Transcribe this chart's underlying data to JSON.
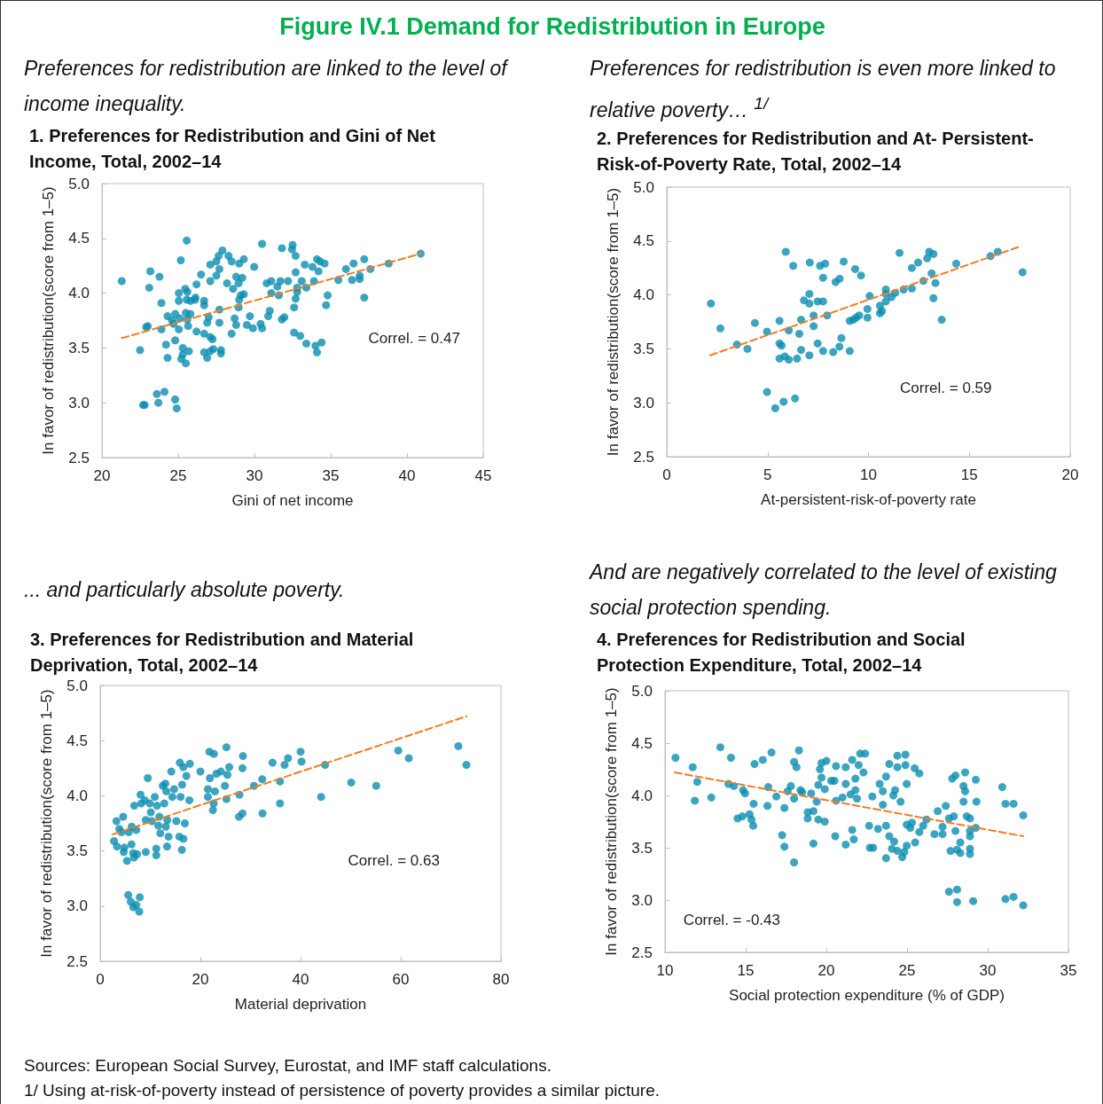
{
  "chart_data": [
    {
      "type": "other",
      "title": "Figure IV.1 Demand for Redistribution in Europe"
    },
    {
      "type": "scatter",
      "subtitle": "Preferences for redistribution are linked to the level of income inequality.",
      "title": "1. Preferences for Redistribution and Gini of Net Income, Total, 2002–14",
      "xlabel": "Gini of net income",
      "ylabel": "In favor of redistribution(score from 1–5)",
      "xlim": [
        20,
        45
      ],
      "xticks": [
        20,
        25,
        30,
        35,
        40,
        45
      ],
      "ylim": [
        2.5,
        5
      ],
      "yticks": [
        2.5,
        {
          "value": 3,
          "label": "3.0"
        },
        3.5,
        {
          "value": 4,
          "label": "4.0"
        },
        4.5,
        {
          "value": 5,
          "label": "5.0"
        }
      ],
      "marker": "circle",
      "annotations": [
        "Correl. = 0.47"
      ],
      "series": [
        {
          "type": "scatter",
          "color": "#0a8db0",
          "x": [
            21.3,
            25.56,
            25.17,
            23.17,
            23.77,
            23.1,
            25.04,
            25.04,
            25.46,
            25.6,
            23.9,
            25.56,
            25.8,
            26.13,
            26.1,
            26.7,
            26.7,
            26.2,
            26.5,
            27.1,
            27.1,
            27.5,
            27.65,
            27.9,
            27.7,
            27.5,
            28.3,
            28.5,
            29.0,
            29.3,
            28.8,
            29.2,
            28.96,
            28.2,
            28.6,
            29.3,
            29.1,
            29.0,
            28.96,
            29.98,
            30.5,
            31.8,
            32.5,
            32.46,
            32.7,
            33.3,
            33.8,
            34.2,
            34.1,
            34.3,
            34.6,
            32.7,
            30.8,
            31.1,
            31.7,
            31.5,
            31.1,
            31.6,
            32.2,
            33.1,
            33.9,
            32.8,
            32.8,
            33.4,
            32.7,
            32.6,
            34.8,
            34.7,
            35.5,
            36.0,
            36.5,
            36.4,
            36.9,
            36.9,
            37.2,
            37.6,
            37.2,
            38.8,
            40.9,
            24.3,
            24.8,
            24.6,
            24.7,
            25.1,
            25.04,
            25.5,
            25.8,
            25.65,
            26.2,
            25.6,
            27.0,
            26.9,
            26.7,
            27.1,
            27.25,
            27.7,
            27.7,
            28.7,
            28.8,
            28.5,
            29.7,
            29.5,
            29.9,
            30.4,
            30.5,
            31.0,
            30.9,
            31.8,
            31.96,
            32.6,
            33.0,
            33.4,
            34.0,
            34.1,
            34.4,
            22.9,
            23.0,
            23.9,
            22.5,
            24.8,
            24.2,
            24.3,
            25.3,
            25.7,
            25.3,
            25.2,
            25.5,
            26.7,
            26.9,
            27.3,
            27.1,
            27.8,
            27.8,
            22.7,
            22.8,
            23.6,
            24.1,
            23.7,
            24.8,
            24.9
          ],
          "values": [
            4.11,
            4.48,
            4.3,
            4.2,
            4.15,
            4.05,
            4.0,
            3.93,
            4.04,
            4.01,
            3.91,
            3.94,
            3.93,
            3.96,
            3.94,
            3.93,
            3.89,
            4.08,
            4.17,
            4.11,
            4.26,
            4.29,
            4.34,
            4.39,
            4.22,
            4.16,
            4.34,
            4.29,
            4.27,
            4.31,
            4.15,
            4.14,
            4.09,
            4.09,
            4.04,
            3.99,
            3.98,
            3.94,
            3.87,
            4.24,
            4.45,
            4.41,
            4.44,
            4.4,
            4.34,
            4.26,
            4.24,
            4.2,
            4.31,
            4.29,
            4.27,
            4.19,
            4.09,
            4.11,
            4.11,
            4.06,
            4.0,
            3.98,
            4.11,
            4.11,
            4.11,
            4.05,
            4.01,
            4.05,
            3.95,
            3.87,
            3.98,
            3.89,
            4.12,
            4.22,
            4.27,
            4.12,
            4.16,
            4.13,
            4.31,
            4.22,
            3.96,
            4.27,
            4.36,
            3.79,
            3.81,
            3.75,
            3.72,
            3.77,
            3.67,
            3.82,
            3.81,
            3.7,
            3.65,
            3.76,
            3.78,
            3.73,
            3.63,
            3.6,
            3.58,
            3.85,
            3.73,
            3.77,
            3.71,
            3.63,
            3.79,
            3.71,
            3.68,
            3.72,
            3.68,
            3.84,
            3.79,
            3.76,
            3.78,
            3.64,
            3.61,
            3.54,
            3.52,
            3.46,
            3.55,
            3.69,
            3.7,
            3.67,
            3.48,
            3.57,
            3.53,
            3.41,
            3.5,
            3.47,
            3.44,
            3.4,
            3.36,
            3.46,
            3.41,
            3.49,
            3.47,
            3.48,
            3.45,
            2.98,
            2.98,
            3.08,
            3.1,
            3.0,
            3.03,
            2.95
          ]
        },
        {
          "type": "line",
          "color": "#f47c20",
          "line_style": "dashed",
          "marker": "none",
          "x": [
            21.3,
            40.9
          ],
          "values": [
            3.59,
            4.36
          ]
        }
      ]
    },
    {
      "type": "scatter",
      "subtitle": "Preferences for redistribution is even more linked to relative poverty… $^{1/}$",
      "title": "2. Preferences for Redistribution and At- Persistent-Risk-of-Poverty Rate, Total, 2002–14",
      "xlabel": "At-persistent-risk-of-poverty rate",
      "ylabel": "In favor of redistribution(score from 1–5)",
      "xlim": [
        0,
        20
      ],
      "xticks": [
        0,
        5,
        10,
        15,
        20
      ],
      "ylim": [
        2.5,
        5
      ],
      "yticks": [
        2.5,
        {
          "value": 3,
          "label": "3.0"
        },
        3.5,
        {
          "value": 4,
          "label": "4.0"
        },
        4.5,
        {
          "value": 5,
          "label": "5.0"
        }
      ],
      "marker": "circle",
      "annotations": [
        "Correl. = 0.59"
      ],
      "series": [
        {
          "type": "scatter",
          "color": "#0a8db0",
          "x": [
            2.19,
            2.66,
            3.48,
            4.0,
            4.37,
            4.97,
            5.59,
            5.59,
            5.69,
            5.59,
            5.85,
            6.05,
            6.05,
            6.46,
            6.57,
            6.66,
            6.66,
            7.07,
            7.28,
            7.28,
            7.48,
            7.75,
            7.95,
            8.25,
            8.56,
            8.66,
            9.07,
            9.07,
            9.25,
            9.39,
            9.54,
            9.95,
            9.95,
            6.8,
            7.07,
            7.07,
            7.48,
            7.75,
            7.75,
            8.37,
            8.57,
            5.9,
            6.27,
            7.09,
            7.6,
            7.85,
            8.77,
            9.34,
            9.63,
            10.06,
            10.57,
            10.57,
            10.67,
            10.86,
            10.86,
            10.86,
            11.14,
            11.33,
            11.74,
            12.15,
            12.72,
            12.15,
            12.46,
            11.54,
            12.91,
            13.01,
            13.22,
            13.13,
            13.32,
            13.22,
            13.63,
            14.35,
            16.05,
            16.41,
            17.64,
            4.97,
            5.38,
            5.79,
            6.36
          ],
          "values": [
            3.92,
            3.69,
            3.54,
            3.5,
            3.74,
            3.66,
            3.76,
            3.55,
            3.53,
            3.41,
            3.43,
            3.4,
            3.67,
            3.41,
            3.64,
            3.49,
            3.77,
            3.44,
            3.71,
            3.81,
            3.55,
            3.48,
            3.81,
            3.47,
            3.52,
            3.6,
            3.48,
            3.76,
            3.77,
            3.79,
            3.81,
            3.79,
            3.87,
            3.95,
            4.01,
            3.92,
            3.94,
            3.94,
            4.16,
            4.12,
            4.15,
            4.4,
            4.27,
            4.3,
            4.27,
            4.29,
            4.31,
            4.24,
            4.18,
            3.99,
            3.9,
            3.83,
            3.85,
            3.94,
            4.05,
            4.01,
            3.98,
            4.02,
            4.05,
            4.06,
            4.13,
            4.25,
            4.3,
            4.39,
            4.34,
            4.4,
            4.38,
            4.2,
            4.11,
            3.97,
            3.77,
            4.29,
            4.36,
            4.4,
            4.21,
            3.1,
            2.95,
            3.01,
            3.04
          ]
        },
        {
          "type": "line",
          "color": "#f47c20",
          "line_style": "dashed",
          "marker": "none",
          "x": [
            2.15,
            17.52
          ],
          "values": [
            3.44,
            4.45
          ]
        }
      ]
    },
    {
      "type": "scatter",
      "subtitle": "... and particularly absolute poverty.",
      "title": "3. Preferences for Redistribution and Material Deprivation, Total, 2002–14",
      "xlabel": "Material deprivation",
      "ylabel": "In favor of redistribution(score from 1–5)",
      "xlim": [
        0,
        80
      ],
      "xticks": [
        0,
        20,
        40,
        60,
        80
      ],
      "ylim": [
        2.5,
        5
      ],
      "yticks": [
        2.5,
        {
          "value": 3,
          "label": "3.0"
        },
        3.5,
        {
          "value": 4,
          "label": "4.0"
        },
        4.5,
        {
          "value": 5,
          "label": "5.0"
        }
      ],
      "marker": "circle",
      "annotations": [
        "Correl. = 0.63"
      ],
      "series": [
        {
          "type": "scatter",
          "color": "#0a8db0",
          "x": [
            2.76,
            3.35,
            3.24,
            3.82,
            4.24,
            4.59,
            4.82,
            4.7,
            5.35,
            5.7,
            6.24,
            6.3,
            6.6,
            6.8,
            7.2,
            6.76,
            7.35,
            8.06,
            8.2,
            8.9,
            9.1,
            9.1,
            9.5,
            9.9,
            10.1,
            10.9,
            11.35,
            10.3,
            11.2,
            11.2,
            11.8,
            11.6,
            12.0,
            12.5,
            13.0,
            12.8,
            13.1,
            13.4,
            13.65,
            13.35,
            13.2,
            14.2,
            14.4,
            14.76,
            15.2,
            15.8,
            15.9,
            16.6,
            17.9,
            17.2,
            16.35,
            16.06,
            16.9,
            16.6,
            16.3,
            17.8,
            20.0,
            21.8,
            22.7,
            21.9,
            21.5,
            22.9,
            21.5,
            22.65,
            22.5,
            23.2,
            24.1,
            25.2,
            25.4,
            25.76,
            24.9,
            25.2,
            27.8,
            27.7,
            28.4,
            28.5,
            28.4,
            30.7,
            32.35,
            32.4,
            34.4,
            35.9,
            35.9,
            36.8,
            37.5,
            40.0,
            40.2,
            44.1,
            44.9,
            50.1,
            55.1,
            59.5,
            61.6,
            71.5,
            73.1,
            5.6,
            6.1,
            6.6,
            7.2,
            7.9,
            7.8
          ],
          "values": [
            3.59,
            3.54,
            3.77,
            3.7,
            3.67,
            3.81,
            3.53,
            3.49,
            3.41,
            3.67,
            3.56,
            3.72,
            3.48,
            3.91,
            3.69,
            3.44,
            3.47,
            4.01,
            3.93,
            3.96,
            3.78,
            3.49,
            4.16,
            3.93,
            3.85,
            3.99,
            3.91,
            3.77,
            3.52,
            3.46,
            3.81,
            3.73,
            3.66,
            4.09,
            4.11,
            3.93,
            3.72,
            3.78,
            3.63,
            3.54,
            4.04,
            4.22,
            3.99,
            4.06,
            3.77,
            3.63,
            4.3,
            4.26,
            4.29,
            4.18,
            4.1,
            3.99,
            3.75,
            3.61,
            3.51,
            3.96,
            4.22,
            4.4,
            4.38,
            4.16,
            4.06,
            4.04,
            3.99,
            3.93,
            3.87,
            4.2,
            4.22,
            4.44,
            4.19,
            4.26,
            4.09,
            3.97,
            4.01,
            3.81,
            3.84,
            4.36,
            4.25,
            4.09,
            4.15,
            3.84,
            4.3,
            4.13,
            3.93,
            4.28,
            4.34,
            4.4,
            4.31,
            3.99,
            4.28,
            4.12,
            4.09,
            4.41,
            4.34,
            4.45,
            4.28,
            3.1,
            3.04,
            2.99,
            3.01,
            3.08,
            2.95
          ]
        },
        {
          "type": "line",
          "color": "#f47c20",
          "line_style": "dashed",
          "marker": "none",
          "x": [
            2.5,
            73.1
          ],
          "values": [
            3.65,
            4.72
          ]
        }
      ]
    },
    {
      "type": "scatter",
      "subtitle": "And are negatively correlated to the level of existing social protection spending.",
      "title": "4. Preferences for Redistribution and Social Protection Expenditure, Total, 2002–14",
      "xlabel": "Social protection expenditure (% of GDP)",
      "ylabel": "In favor of redistribution(score from 1–5)",
      "xlim": [
        10,
        35
      ],
      "xticks": [
        10,
        15,
        20,
        25,
        30,
        35
      ],
      "ylim": [
        2.5,
        5
      ],
      "yticks": [
        2.5,
        {
          "value": 3,
          "label": "3.0"
        },
        3.5,
        {
          "value": 4,
          "label": "4.0"
        },
        4.5,
        {
          "value": 5,
          "label": "5.0"
        }
      ],
      "marker": "circle",
      "annotations": [
        "Correl. = -0.43"
      ],
      "series": [
        {
          "type": "scatter",
          "color": "#0a8db0",
          "x": [
            10.65,
            11.72,
            12.0,
            11.85,
            12.87,
            13.43,
            14.09,
            13.93,
            14.27,
            14.5,
            14.8,
            14.84,
            14.96,
            15.24,
            15.36,
            15.47,
            15.49,
            15.55,
            16.06,
            16.6,
            16.4,
            16.35,
            16.9,
            17.26,
            17.4,
            17.4,
            17.6,
            17.8,
            18.0,
            18.0,
            18.0,
            18.15,
            18.3,
            18.4,
            18.5,
            18.84,
            18.84,
            19.2,
            19.2,
            19.06,
            19.4,
            19.5,
            19.5,
            19.9,
            19.9,
            19.7,
            19.6,
            19.7,
            20.0,
            20.3,
            20.5,
            20.6,
            20.55,
            20.6,
            21.0,
            21.2,
            21.2,
            21.2,
            21.5,
            21.6,
            21.6,
            21.7,
            21.8,
            21.8,
            21.9,
            22.0,
            22.1,
            22.4,
            22.3,
            22.65,
            22.7,
            22.9,
            22.85,
            23.2,
            23.3,
            23.5,
            23.5,
            23.7,
            23.7,
            23.7,
            23.9,
            23.9,
            24.06,
            24.15,
            24.2,
            24.26,
            24.4,
            24.4,
            24.4,
            24.6,
            24.7,
            24.9,
            24.9,
            24.98,
            24.98,
            24.83,
            24.98,
            25.2,
            25.3,
            25.47,
            25.76,
            25.76,
            25.5,
            26.0,
            26.2,
            26.7,
            26.9,
            27.2,
            27.2,
            27.4,
            27.6,
            27.7,
            27.8,
            28.0,
            28.0,
            27.9,
            28.1,
            28.3,
            28.3,
            28.6,
            28.5,
            28.6,
            28.5,
            28.7,
            28.9,
            28.9,
            28.9,
            28.9,
            28.9,
            29.26,
            29.26,
            29.3,
            27.6,
            28.1,
            28.1,
            29.1,
            30.9,
            31.1,
            31.6,
            32.2,
            31.1,
            31.6,
            32.2
          ],
          "values": [
            4.36,
            4.27,
            4.13,
            3.95,
            3.98,
            4.46,
            4.36,
            4.11,
            4.09,
            3.78,
            3.8,
            4.05,
            4.02,
            3.82,
            3.77,
            3.71,
            3.92,
            4.3,
            4.34,
            4.41,
            4.08,
            3.9,
            3.99,
            3.62,
            3.51,
            3.88,
            4.04,
            4.09,
            3.97,
            3.36,
            4.32,
            4.27,
            4.43,
            4.05,
            4.03,
            3.84,
            3.78,
            3.54,
            3.85,
            4.02,
            3.94,
            4.1,
            3.77,
            3.75,
            4.06,
            4.17,
            4.25,
            4.31,
            4.33,
            4.14,
            4.14,
            4.28,
            3.61,
            3.95,
            3.98,
            4.27,
            4.11,
            3.53,
            4.01,
            4.34,
            3.67,
            3.58,
            4.16,
            4.05,
            3.97,
            4.29,
            4.4,
            4.4,
            4.22,
            3.71,
            3.5,
            3.5,
            3.99,
            3.68,
            4.11,
            4.04,
            3.91,
            4.18,
            3.71,
            3.4,
            4.3,
            3.61,
            3.49,
            4.0,
            3.56,
            4.05,
            4.38,
            4.27,
            3.47,
            3.94,
            3.41,
            4.39,
            4.29,
            4.11,
            3.52,
            3.46,
            3.72,
            3.69,
            3.74,
            4.26,
            4.21,
            3.65,
            3.55,
            3.71,
            3.77,
            3.63,
            3.85,
            3.63,
            3.7,
            3.9,
            3.78,
            3.47,
            4.16,
            4.19,
            3.66,
            3.8,
            3.48,
            3.45,
            3.55,
            4.22,
            4.09,
            4.04,
            3.94,
            3.8,
            3.78,
            3.66,
            3.61,
            3.49,
            3.44,
            3.69,
            4.15,
            3.94,
            3.08,
            3.1,
            2.98,
            2.99,
            4.08,
            3.92,
            3.92,
            3.81,
            3.01,
            3.03,
            2.95
          ]
        },
        {
          "type": "line",
          "color": "#f47c20",
          "line_style": "dashed",
          "marker": "none",
          "x": [
            10.6,
            32.2
          ],
          "values": [
            4.22,
            3.61
          ]
        }
      ]
    },
    {
      "type": "other",
      "annotations": [
        "Sources: European Social Survey, Eurostat, and IMF staff calculations.",
        "1/ Using at-risk-of-poverty instead of persistence of poverty provides a similar picture."
      ]
    }
  ]
}
